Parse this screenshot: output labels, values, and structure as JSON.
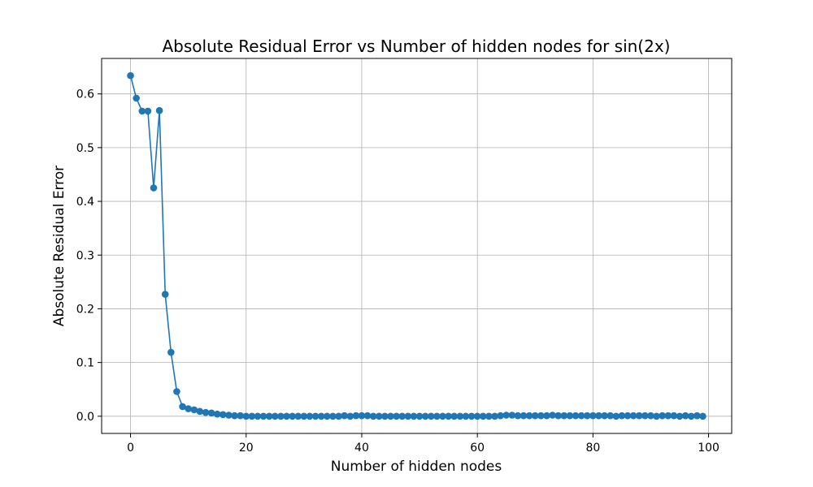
{
  "chart_data": {
    "type": "line",
    "title": "Absolute Residual Error vs Number of hidden nodes for sin(2x)",
    "xlabel": "Number of hidden nodes",
    "ylabel": "Absolute Residual Error",
    "xlim": [
      -5,
      104
    ],
    "ylim": [
      -0.032,
      0.666
    ],
    "grid": true,
    "series_color": "#1f77b4",
    "marker": "circle",
    "xticks": [
      0,
      20,
      40,
      60,
      80,
      100
    ],
    "xtick_labels": [
      "0",
      "20",
      "40",
      "60",
      "80",
      "100"
    ],
    "yticks": [
      0.0,
      0.1,
      0.2,
      0.3,
      0.4,
      0.5,
      0.6
    ],
    "ytick_labels": [
      "0.0",
      "0.1",
      "0.2",
      "0.3",
      "0.4",
      "0.5",
      "0.6"
    ],
    "x": [
      0,
      1,
      2,
      3,
      4,
      5,
      6,
      7,
      8,
      9,
      10,
      11,
      12,
      13,
      14,
      15,
      16,
      17,
      18,
      19,
      20,
      21,
      22,
      23,
      24,
      25,
      26,
      27,
      28,
      29,
      30,
      31,
      32,
      33,
      34,
      35,
      36,
      37,
      38,
      39,
      40,
      41,
      42,
      43,
      44,
      45,
      46,
      47,
      48,
      49,
      50,
      51,
      52,
      53,
      54,
      55,
      56,
      57,
      58,
      59,
      60,
      61,
      62,
      63,
      64,
      65,
      66,
      67,
      68,
      69,
      70,
      71,
      72,
      73,
      74,
      75,
      76,
      77,
      78,
      79,
      80,
      81,
      82,
      83,
      84,
      85,
      86,
      87,
      88,
      89,
      90,
      91,
      92,
      93,
      94,
      95,
      96,
      97,
      98,
      99
    ],
    "y": [
      0.634,
      0.592,
      0.568,
      0.568,
      0.425,
      0.569,
      0.227,
      0.119,
      0.046,
      0.018,
      0.014,
      0.012,
      0.009,
      0.007,
      0.006,
      0.004,
      0.003,
      0.002,
      0.001,
      0.001,
      0.0,
      0.0,
      0.0,
      0.0,
      0.0,
      0.0,
      0.0,
      0.0,
      0.0,
      0.0,
      0.0,
      0.0,
      0.0,
      0.0,
      0.0,
      0.0,
      0.0,
      0.001,
      0.0,
      0.001,
      0.001,
      0.001,
      0.0,
      0.0,
      0.0,
      0.0,
      0.0,
      0.0,
      0.0,
      0.0,
      0.0,
      0.0,
      0.0,
      0.0,
      0.0,
      0.0,
      0.0,
      0.0,
      0.0,
      0.0,
      0.0,
      0.0,
      0.0,
      0.0,
      0.001,
      0.002,
      0.002,
      0.001,
      0.001,
      0.001,
      0.001,
      0.001,
      0.001,
      0.002,
      0.001,
      0.001,
      0.001,
      0.001,
      0.001,
      0.001,
      0.001,
      0.001,
      0.001,
      0.001,
      0.0,
      0.001,
      0.001,
      0.001,
      0.001,
      0.001,
      0.001,
      0.0,
      0.001,
      0.001,
      0.001,
      0.0,
      0.001,
      0.0,
      0.001,
      0.0
    ]
  }
}
